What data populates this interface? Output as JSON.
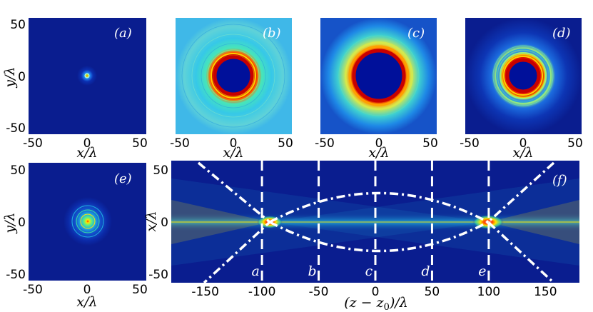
{
  "figure": {
    "panels": [
      {
        "id": "a",
        "label": "(a)",
        "xlabel": "x/λ",
        "ylabel": "y/λ",
        "xticks": [
          "-50",
          "0",
          "50"
        ],
        "yticks": [
          "50",
          "0",
          "-50"
        ],
        "ring_radius": 0,
        "ring_width": 4
      },
      {
        "id": "b",
        "label": "(b)",
        "xlabel": "x/λ",
        "xticks": [
          "-50",
          "0",
          "50"
        ],
        "ring_radius": 22,
        "ring_width": 6
      },
      {
        "id": "c",
        "label": "(c)",
        "xlabel": "x/λ",
        "xticks": [
          "-50",
          "0",
          "50"
        ],
        "ring_radius": 28,
        "ring_width": 7
      },
      {
        "id": "d",
        "label": "(d)",
        "xlabel": "x/λ",
        "xticks": [
          "-50",
          "0",
          "50"
        ],
        "ring_radius": 18,
        "ring_width": 5
      },
      {
        "id": "e",
        "label": "(e)",
        "xlabel": "x/λ",
        "ylabel": "y/λ",
        "xticks": [
          "-50",
          "0",
          "50"
        ],
        "yticks": [
          "50",
          "0",
          "-50"
        ],
        "ring_radius": 0,
        "ring_width": 6
      }
    ],
    "panel_f": {
      "label": "(f)",
      "xlabel": "(z − z0)/λ",
      "ylabel": "x/λ",
      "xticks": [
        "-150",
        "-100",
        "-50",
        "0",
        "50",
        "100",
        "150"
      ],
      "yticks": [
        "50",
        "0",
        "-50"
      ],
      "markers": [
        "a",
        "b",
        "c",
        "d",
        "e"
      ]
    }
  },
  "chart_data": {
    "type": "heatmap",
    "title": "",
    "xlabel": "(z − z0)/λ",
    "ylabel": "x/λ",
    "xlim": [
      -180,
      180
    ],
    "ylim": [
      -58,
      58
    ],
    "slice_positions": [
      {
        "marker": "a",
        "z": -100
      },
      {
        "marker": "b",
        "z": -50
      },
      {
        "marker": "c",
        "z": 0
      },
      {
        "marker": "d",
        "z": 50
      },
      {
        "marker": "e",
        "z": 100
      }
    ],
    "colors": {
      "background": "#0a1d8f",
      "focus": "#ff2a00",
      "guide": "#ffffff"
    }
  }
}
